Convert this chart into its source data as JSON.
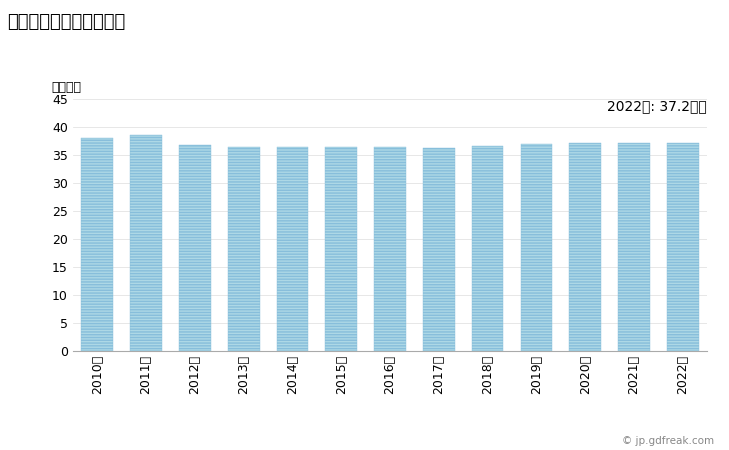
{
  "title": "一般労働者の所定内給与",
  "ylabel": "［万円］",
  "annotation": "2022年: 37.2万円",
  "years": [
    "2010年",
    "2011年",
    "2012年",
    "2013年",
    "2014年",
    "2015年",
    "2016年",
    "2017年",
    "2018年",
    "2019年",
    "2020年",
    "2021年",
    "2022年"
  ],
  "values": [
    38.0,
    38.5,
    36.7,
    36.5,
    36.5,
    36.5,
    36.5,
    36.2,
    36.6,
    36.9,
    37.1,
    37.1,
    37.2
  ],
  "ylim": [
    0,
    45
  ],
  "yticks": [
    0,
    5,
    10,
    15,
    20,
    25,
    30,
    35,
    40,
    45
  ],
  "bar_color": "#add8e6",
  "bar_stripe_color": "#ffffff",
  "bar_edge_color": "#87bedb",
  "background_color": "#ffffff",
  "plot_bg_color": "#ffffff",
  "title_fontsize": 13,
  "label_fontsize": 9,
  "tick_fontsize": 9,
  "annotation_fontsize": 10,
  "watermark": "© jp.gdfreak.com"
}
